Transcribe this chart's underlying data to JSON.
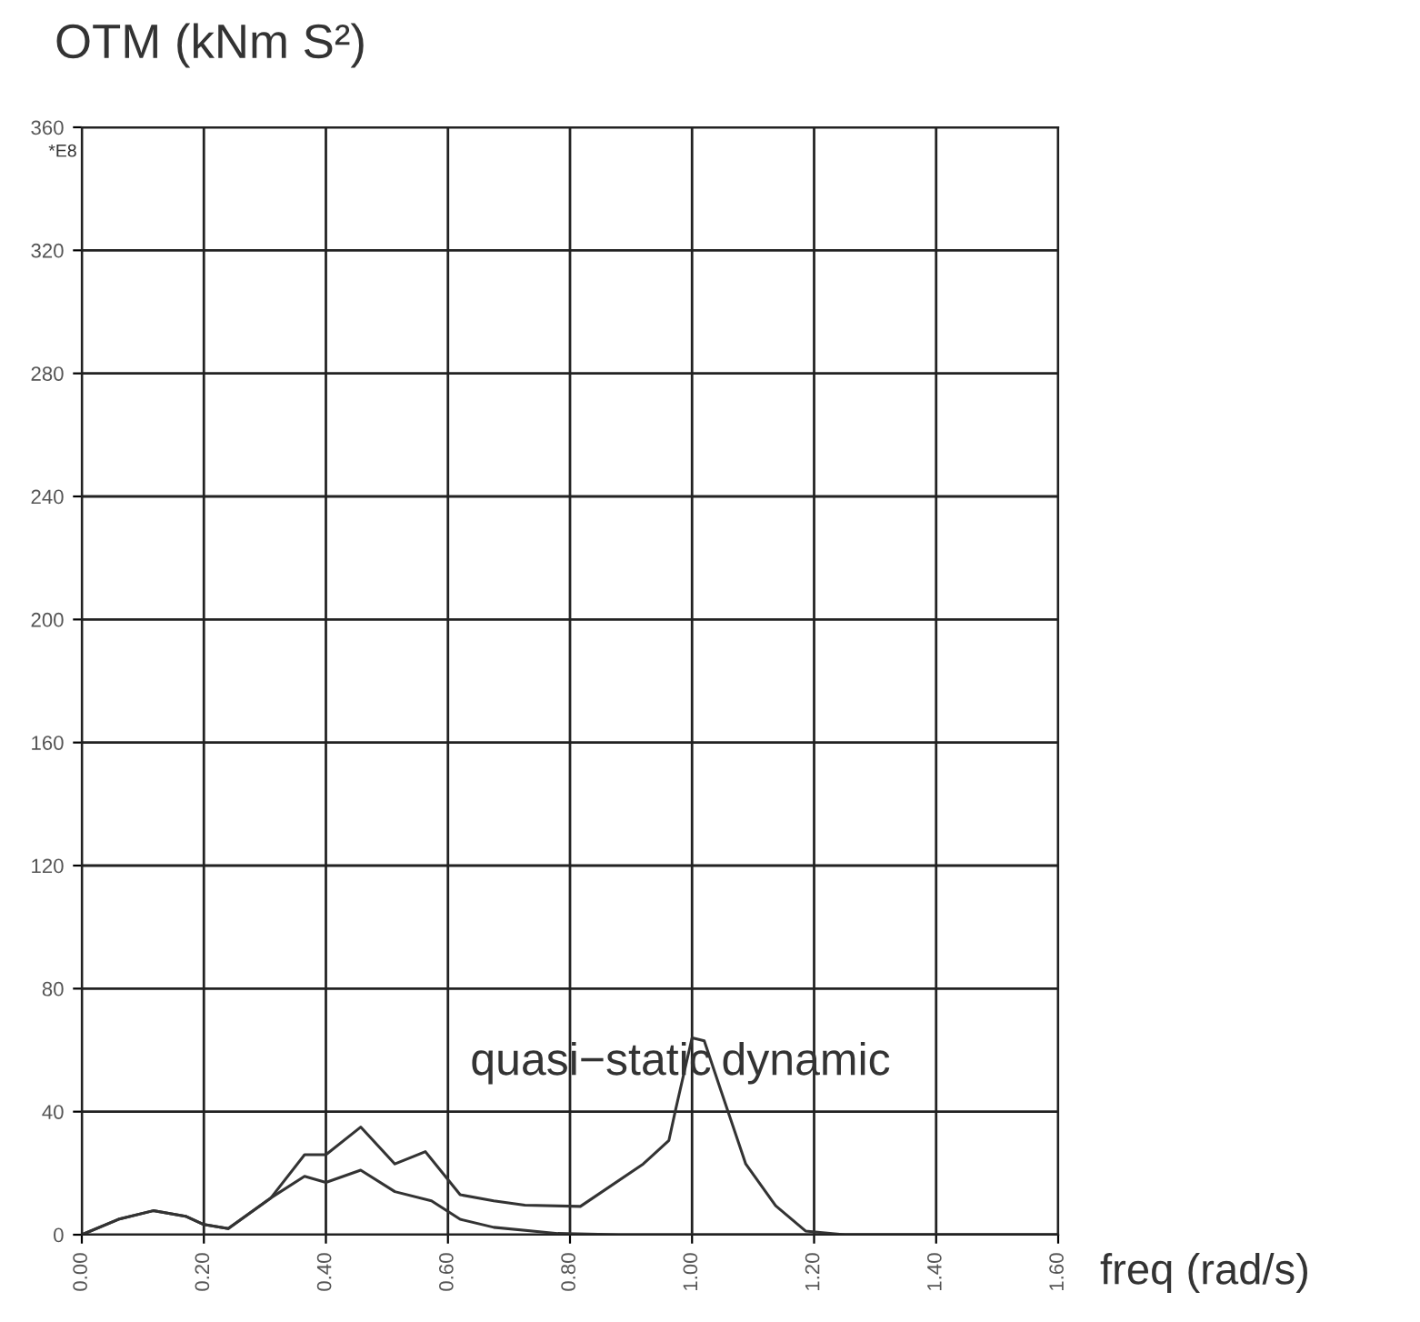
{
  "chart_data": {
    "type": "line",
    "xlabel": "freq (rad/s)",
    "ylabel": "OTM (kNm S²)",
    "xlim": [
      0,
      1.6
    ],
    "ylim": [
      0,
      360
    ],
    "xticks": [
      {
        "value": 0,
        "label": "0.00"
      },
      {
        "value": 0.2,
        "label": "0.20"
      },
      {
        "value": 0.4,
        "label": "0.40"
      },
      {
        "value": 0.6,
        "label": "0.60"
      },
      {
        "value": 0.8,
        "label": "0.80"
      },
      {
        "value": 1.0,
        "label": "1.00"
      },
      {
        "value": 1.2,
        "label": "1.20"
      },
      {
        "value": 1.4,
        "label": "1.40"
      },
      {
        "value": 1.6,
        "label": "1.60"
      }
    ],
    "yticks": [
      0,
      40,
      80,
      120,
      160,
      200,
      240,
      280,
      320,
      360
    ],
    "grid": true,
    "marker": "none",
    "line_style": "solid",
    "annotations": [
      "quasi−static",
      "dynamic",
      "*E8"
    ],
    "series": [
      {
        "color": "#333333",
        "x": [
          0,
          0.06,
          0.117,
          0.17,
          0.2,
          0.24,
          0.31,
          0.365,
          0.4,
          0.457,
          0.513,
          0.563,
          0.62,
          0.675,
          0.726,
          0.817,
          0.92,
          0.962,
          0.973,
          1.0,
          1.02,
          1.048,
          1.088,
          1.137,
          1.186,
          1.25,
          1.35,
          1.6
        ],
        "values": [
          0,
          5,
          7.8,
          6,
          3.3,
          2,
          12,
          26,
          26,
          35,
          23,
          27,
          13,
          11,
          9.6,
          9.2,
          23,
          30.6,
          40.6,
          64,
          63,
          46.5,
          23,
          9.4,
          1.2,
          0,
          0,
          0
        ]
      },
      {
        "color": "#333333",
        "x": [
          0,
          0.06,
          0.117,
          0.17,
          0.2,
          0.24,
          0.31,
          0.365,
          0.4,
          0.457,
          0.513,
          0.573,
          0.62,
          0.675,
          0.78,
          0.88,
          1.2,
          1.6
        ],
        "values": [
          0,
          5,
          7.8,
          6,
          3.3,
          2,
          12,
          19,
          17,
          21,
          14,
          11,
          5,
          2.4,
          0.4,
          0,
          0,
          0
        ]
      }
    ]
  }
}
